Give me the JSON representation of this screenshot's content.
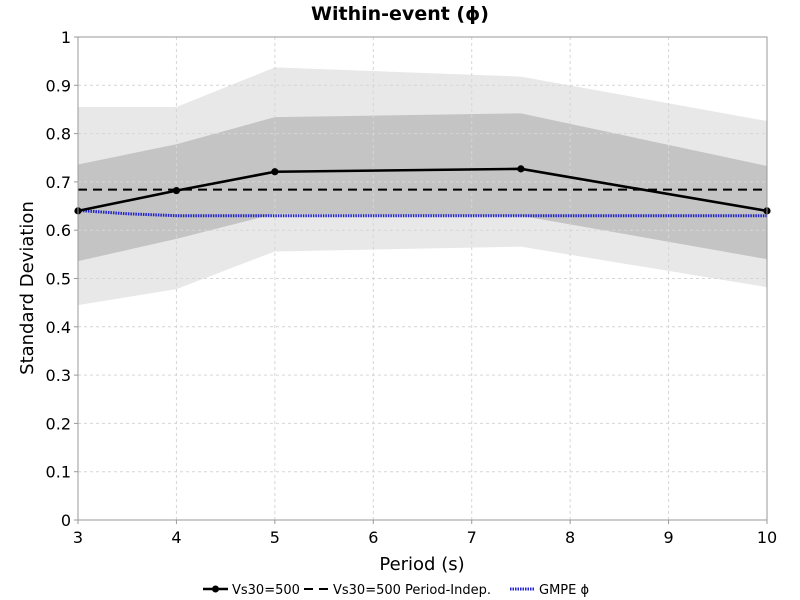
{
  "chart_data": {
    "type": "line",
    "title": "Within-event (ϕ)",
    "xlabel": "Period (s)",
    "ylabel": "Standard Deviation",
    "xlim": [
      3,
      10
    ],
    "ylim": [
      0,
      1
    ],
    "x_ticks": [
      "3",
      "4",
      "5",
      "6",
      "7",
      "8",
      "9",
      "10"
    ],
    "y_ticks": [
      "0",
      "0.1",
      "0.2",
      "0.3",
      "0.4",
      "0.5",
      "0.6",
      "0.7",
      "0.8",
      "0.9",
      "1"
    ],
    "grid": true,
    "legend_position": "bottom",
    "series": [
      {
        "name": "Vs30=500",
        "style": "solid-markers",
        "color": "#000000",
        "x": [
          3,
          4,
          5,
          7.5,
          10
        ],
        "values": [
          0.64,
          0.682,
          0.721,
          0.727,
          0.64
        ]
      },
      {
        "name": "Vs30=500 Period-Indep.",
        "style": "dashed",
        "color": "#000000",
        "x": [
          3,
          10
        ],
        "values": [
          0.684,
          0.684
        ]
      },
      {
        "name": "GMPE ϕ",
        "style": "dotted",
        "color": "#2222cc",
        "x": [
          3,
          3.5,
          4,
          5,
          7.5,
          10
        ],
        "values": [
          0.641,
          0.634,
          0.63,
          0.63,
          0.63,
          0.63
        ]
      }
    ],
    "bands": [
      {
        "role": "outer",
        "color": "#e8e8e8",
        "x": [
          3,
          4,
          5,
          7.5,
          10
        ],
        "lower": [
          0.445,
          0.478,
          0.556,
          0.566,
          0.482
        ],
        "upper": [
          0.855,
          0.855,
          0.937,
          0.918,
          0.826
        ]
      },
      {
        "role": "inner",
        "color": "#c4c4c4",
        "x": [
          3,
          4,
          5,
          7.5,
          10
        ],
        "lower": [
          0.536,
          0.582,
          0.634,
          0.63,
          0.54
        ],
        "upper": [
          0.736,
          0.778,
          0.834,
          0.842,
          0.733
        ]
      }
    ]
  }
}
